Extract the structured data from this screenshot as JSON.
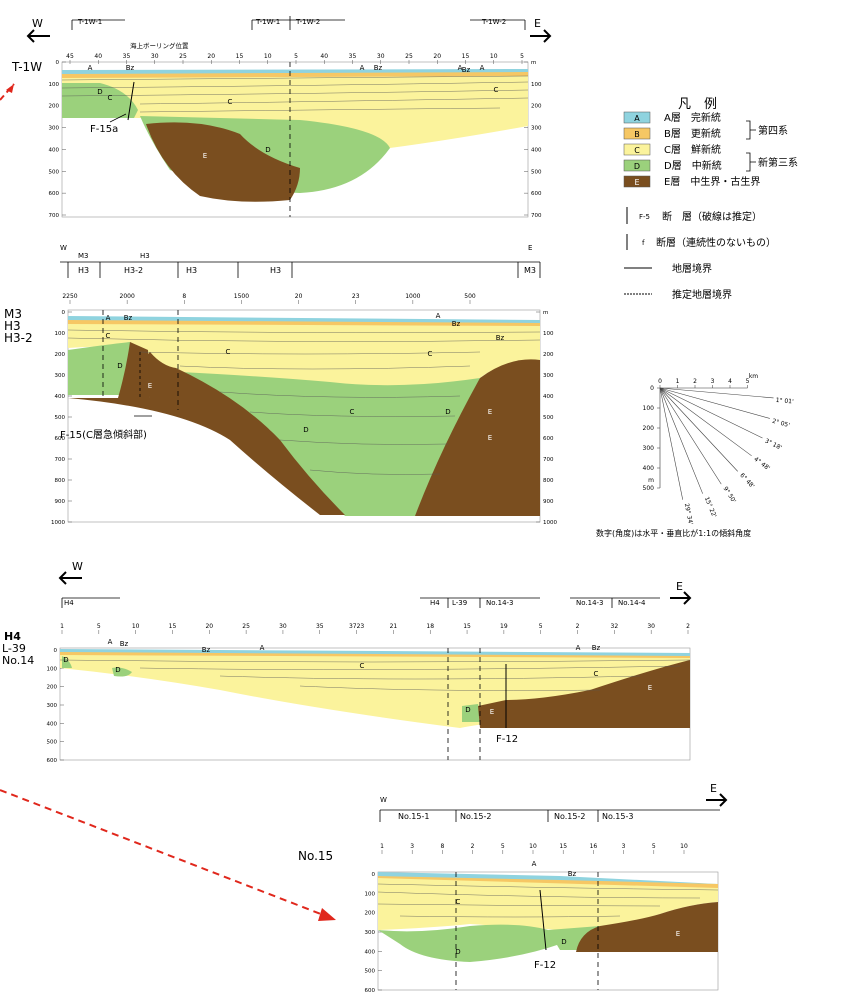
{
  "colors": {
    "A": "#8fd3df",
    "B": "#f6c764",
    "C": "#fbf39c",
    "D": "#9bd17c",
    "E": "#7a4e1f",
    "arrow": "#e0271c",
    "ink": "#222222",
    "grid": "#bbbbbb"
  },
  "compass": {
    "west": "W",
    "east": "E"
  },
  "section1": {
    "name": "T-1W",
    "headers": [
      "T-1W-1",
      "T-1W-1",
      "T-1W-2",
      "T-1W-2"
    ],
    "boring_label": "海上ボーリング位置",
    "top_ticks": [
      "45",
      "40",
      "35",
      "30",
      "25",
      "20",
      "15",
      "10",
      "5",
      "40",
      "35",
      "30",
      "25",
      "20",
      "15",
      "10",
      "5"
    ],
    "depth_ticks": [
      "0",
      "100",
      "200",
      "300",
      "400",
      "500",
      "600",
      "700"
    ],
    "right_ticks": [
      "m",
      "100",
      "200",
      "300",
      "400",
      "500",
      "600",
      "700"
    ],
    "fault": "F-15a",
    "layer_marks": [
      "A",
      "Bz",
      "C",
      "D",
      "C",
      "D",
      "E",
      "A",
      "Bz",
      "A",
      "C",
      "Bz",
      "A"
    ]
  },
  "section2": {
    "name_lines": [
      "M3",
      "H3",
      "H3-2"
    ],
    "header_top": [
      "W",
      "M3",
      "H3",
      "E"
    ],
    "header_row": [
      "H3",
      "H3-2",
      "H3",
      "H3",
      "M3"
    ],
    "top_ticks": [
      "2250",
      "2000",
      "8",
      "1500",
      "20",
      "23",
      "1000",
      "500"
    ],
    "depth_ticks": [
      "0",
      "100",
      "200",
      "300",
      "400",
      "500",
      "600",
      "700",
      "800",
      "900",
      "1000"
    ],
    "right_ticks": [
      "m",
      "100",
      "200",
      "300",
      "400",
      "500",
      "600",
      "700",
      "800",
      "900",
      "1000"
    ],
    "fault": "F-15(C層急傾斜部)",
    "layer_marks": [
      "A",
      "Bz",
      "C",
      "C",
      "D",
      "E",
      "C",
      "D",
      "E",
      "A",
      "Bz",
      "C",
      "Bz",
      "D",
      "E"
    ]
  },
  "section3": {
    "name_lines": [
      "H4",
      "L-39",
      "No.14"
    ],
    "header_row": [
      "H4",
      "H4",
      "L-39",
      "No.14-3",
      "No.14-3",
      "No.14-4"
    ],
    "top_ticks": [
      "1",
      "5",
      "10",
      "15",
      "20",
      "25",
      "30",
      "35",
      "3723",
      "21",
      "18",
      "15",
      "19",
      "5",
      "2",
      "32",
      "30",
      "2"
    ],
    "depth_ticks": [
      "0",
      "100",
      "200",
      "300",
      "400",
      "500",
      "600"
    ],
    "fault": "F-12",
    "layer_marks": [
      "A",
      "Bz",
      "D",
      "D",
      "Bz",
      "A",
      "C",
      "A",
      "Bz",
      "C",
      "D",
      "E",
      "E"
    ]
  },
  "section4": {
    "name": "No.15",
    "header_top": [
      "W"
    ],
    "header_row": [
      "No.15-1",
      "No.15-2",
      "No.15-2",
      "No.15-3"
    ],
    "top_ticks": [
      "1",
      "3",
      "8",
      "2",
      "5",
      "10",
      "15",
      "16",
      "3",
      "5",
      "10"
    ],
    "depth_ticks": [
      "0",
      "100",
      "200",
      "300",
      "400",
      "500",
      "600"
    ],
    "fault": "F-12",
    "layer_marks": [
      "A",
      "Bz",
      "C",
      "D",
      "D",
      "E"
    ]
  },
  "legend": {
    "title": "凡　例",
    "items": [
      {
        "key": "A",
        "text": "A層　完新統"
      },
      {
        "key": "B",
        "text": "B層　更新統"
      },
      {
        "key": "C",
        "text": "C層　鮮新統"
      },
      {
        "key": "D",
        "text": "D層　中新統"
      },
      {
        "key": "E",
        "text": "E層　中生界・古生界"
      }
    ],
    "bracket1": "第四系",
    "bracket2": "新第三系",
    "fault1_tag": "F-5",
    "fault1_text": "断　層（破線は推定）",
    "fault2_tag": "f",
    "fault2_text": "断層（連続性のないもの）",
    "boundary": "地層境界",
    "boundary_est": "推定地層境界"
  },
  "angle_chart": {
    "km_ticks": [
      "0",
      "1",
      "2",
      "3",
      "4",
      "5"
    ],
    "km_unit": "km",
    "depth_ticks": [
      "0",
      "100",
      "200",
      "300",
      "400",
      "500"
    ],
    "depth_unit": "m",
    "angles": [
      "1° 01'",
      "2° 05'",
      "3° 18'",
      "4° 48'",
      "6° 48'",
      "9° 50'",
      "15° 22'",
      "29° 34'"
    ],
    "note": "数字(角度)は水平・垂直比が1:1の傾斜角度"
  }
}
